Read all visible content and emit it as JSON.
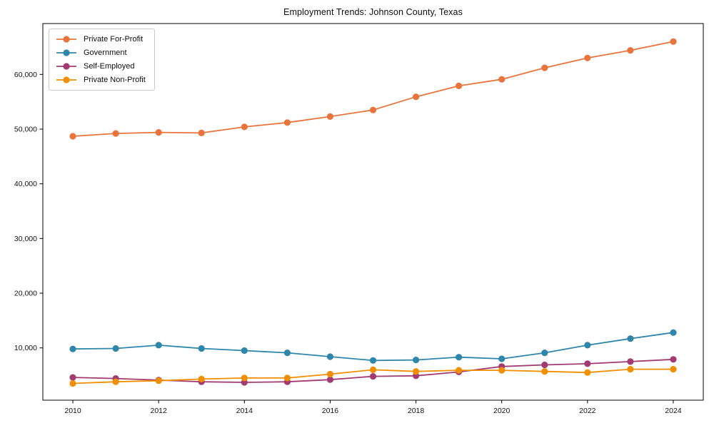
{
  "chart_data": {
    "type": "line",
    "title": "Employment Trends: Johnson County, Texas",
    "xlabel": "",
    "ylabel": "",
    "x": [
      2010,
      2011,
      2012,
      2013,
      2014,
      2015,
      2016,
      2017,
      2018,
      2019,
      2020,
      2021,
      2022,
      2023,
      2024
    ],
    "series": [
      {
        "name": "Private For-Profit",
        "color": "#e8743b",
        "values": [
          48700,
          49200,
          49400,
          49300,
          50400,
          51200,
          52300,
          53500,
          55900,
          57900,
          59100,
          61200,
          63000,
          64400,
          66000
        ]
      },
      {
        "name": "Government",
        "color": "#2e86ab",
        "values": [
          9800,
          9900,
          10500,
          9900,
          9500,
          9100,
          8400,
          7700,
          7800,
          8300,
          8000,
          9100,
          10500,
          11700,
          12800
        ]
      },
      {
        "name": "Self-Employed",
        "color": "#a23b72",
        "values": [
          4600,
          4400,
          4100,
          3800,
          3700,
          3800,
          4200,
          4800,
          4900,
          5600,
          6600,
          6900,
          7100,
          7500,
          7900
        ]
      },
      {
        "name": "Private Non-Profit",
        "color": "#f18f01",
        "values": [
          3500,
          3800,
          4000,
          4300,
          4500,
          4500,
          5200,
          6000,
          5700,
          5900,
          5900,
          5700,
          5500,
          6100,
          6100
        ]
      }
    ],
    "xticks": [
      2010,
      2012,
      2014,
      2016,
      2018,
      2020,
      2022,
      2024
    ],
    "yticks": [
      10000,
      20000,
      30000,
      40000,
      50000,
      60000
    ],
    "ytick_labels": [
      "10,000",
      "20,000",
      "30,000",
      "40,000",
      "50,000",
      "60,000"
    ],
    "xlim": [
      2009.3,
      2024.7
    ],
    "ylim": [
      440,
      69300
    ],
    "grid": false,
    "legend_position": "upper-left",
    "axis_color": "#000000"
  }
}
